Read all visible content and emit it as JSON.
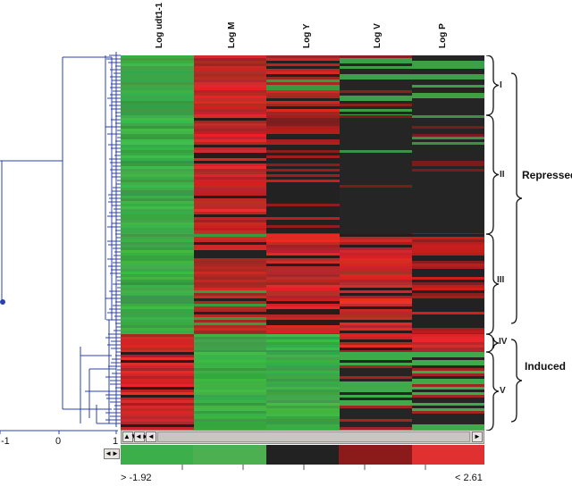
{
  "chart_data": {
    "type": "heatmap",
    "columns": [
      "Log udt1-1",
      "Log M",
      "Log Y",
      "Log V",
      "Log P"
    ],
    "clusters": [
      "I",
      "II",
      "III",
      "IV",
      "V"
    ],
    "groups": [
      "Repressed",
      "Induced"
    ],
    "color_scale": {
      "min_label": "> -1.92",
      "max_label": "< 2.61",
      "min": -1.92,
      "max": 2.61,
      "colors": [
        "#3cae4a",
        "#4caf50",
        "#222222",
        "#8b1a1a",
        "#e03030"
      ]
    },
    "dendrogram_axis_ticks": [
      "-1",
      "0",
      "1"
    ],
    "cluster_value_pattern": [
      {
        "cluster": "I",
        "values": [
          "green",
          "red",
          "red-mixed",
          "black-green",
          "black-green"
        ]
      },
      {
        "cluster": "II",
        "values": [
          "green",
          "red",
          "red-black",
          "black",
          "black"
        ]
      },
      {
        "cluster": "III",
        "values": [
          "green",
          "red-mixed",
          "red",
          "red",
          "red-black"
        ]
      },
      {
        "cluster": "IV",
        "values": [
          "red",
          "green",
          "green",
          "red",
          "red"
        ]
      },
      {
        "cluster": "V",
        "values": [
          "red",
          "green",
          "green",
          "green-black",
          "green-black"
        ]
      }
    ]
  },
  "ui": {
    "scroll_left": "◄",
    "scroll_right": "►",
    "ctrl_a": "▲▼",
    "ctrl_b": "◄►"
  }
}
